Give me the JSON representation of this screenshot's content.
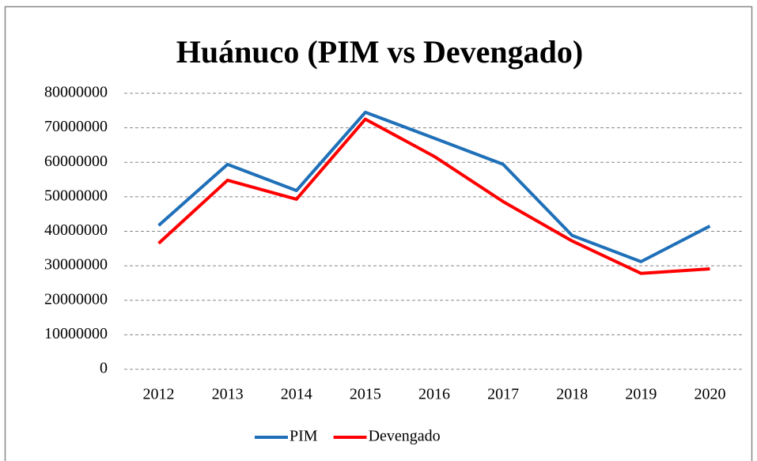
{
  "chart_data": {
    "type": "line",
    "title": "Huánuco (PIM vs Devengado)",
    "categories": [
      "2012",
      "2013",
      "2014",
      "2015",
      "2016",
      "2017",
      "2018",
      "2019",
      "2020"
    ],
    "series": [
      {
        "name": "PIM",
        "color": "#1f70b8",
        "values": [
          41700000,
          59400000,
          51800000,
          74500000,
          67000000,
          59400000,
          38800000,
          31200000,
          41500000
        ]
      },
      {
        "name": "Devengado",
        "color": "#ff0000",
        "values": [
          36500000,
          54800000,
          49300000,
          72500000,
          61700000,
          48600000,
          37200000,
          27800000,
          29100000
        ]
      }
    ],
    "ylim": [
      0,
      80000000
    ],
    "yticks": [
      0,
      10000000,
      20000000,
      30000000,
      40000000,
      50000000,
      60000000,
      70000000,
      80000000
    ],
    "grid": true,
    "legend": "bottom"
  }
}
